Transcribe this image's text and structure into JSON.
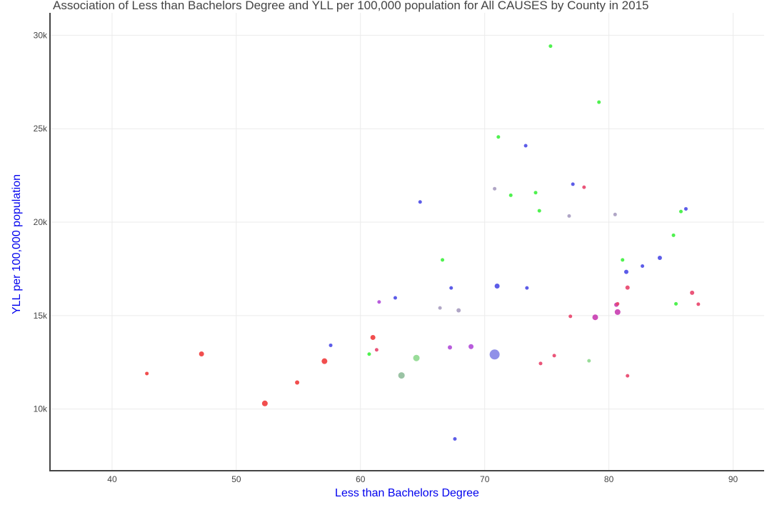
{
  "chart_data": {
    "type": "scatter",
    "title": "Association of Less than Bachelors Degree and YLL per 100,000 population for All CAUSES by County in 2015",
    "xlabel": "Less than Bachelors Degree",
    "ylabel": "YLL per 100,000 population",
    "xlim": [
      35,
      92.5
    ],
    "ylim": [
      6700,
      31200
    ],
    "xticks": [
      40,
      50,
      60,
      70,
      80,
      90
    ],
    "xtick_labels": [
      "40",
      "50",
      "60",
      "70",
      "80",
      "90"
    ],
    "yticks": [
      10000,
      15000,
      20000,
      25000,
      30000
    ],
    "ytick_labels": [
      "10k",
      "15k",
      "20k",
      "25k",
      "30k"
    ],
    "grid": true,
    "axis_title_color": "#0000ee",
    "points": [
      {
        "x": 42.8,
        "y": 11900,
        "color": "#ef3b3b",
        "size": 2.5
      },
      {
        "x": 47.2,
        "y": 12950,
        "color": "#ef3b3b",
        "size": 3.5
      },
      {
        "x": 52.3,
        "y": 10300,
        "color": "#ef3b3b",
        "size": 4
      },
      {
        "x": 54.9,
        "y": 11420,
        "color": "#ef3b3b",
        "size": 3
      },
      {
        "x": 57.1,
        "y": 12560,
        "color": "#ef3b3b",
        "size": 4
      },
      {
        "x": 61.0,
        "y": 13830,
        "color": "#ef3b3b",
        "size": 3.5
      },
      {
        "x": 61.3,
        "y": 13170,
        "color": "#e8436a",
        "size": 2.5
      },
      {
        "x": 57.6,
        "y": 13410,
        "color": "#4a4ae6",
        "size": 2.5
      },
      {
        "x": 60.7,
        "y": 12940,
        "color": "#3cf03c",
        "size": 2.5
      },
      {
        "x": 61.5,
        "y": 15730,
        "color": "#b04ad8",
        "size": 2.5
      },
      {
        "x": 62.8,
        "y": 15950,
        "color": "#4a4ae6",
        "size": 2.5
      },
      {
        "x": 63.3,
        "y": 11800,
        "color": "#8fbc9a",
        "size": 4.5
      },
      {
        "x": 64.5,
        "y": 12730,
        "color": "#8ed88e",
        "size": 4.5
      },
      {
        "x": 64.8,
        "y": 21080,
        "color": "#4a4ae6",
        "size": 2.5
      },
      {
        "x": 66.4,
        "y": 15410,
        "color": "#a79cc0",
        "size": 2.5
      },
      {
        "x": 66.6,
        "y": 17980,
        "color": "#3cf03c",
        "size": 2.5
      },
      {
        "x": 67.2,
        "y": 13300,
        "color": "#b04ad8",
        "size": 3
      },
      {
        "x": 67.3,
        "y": 16480,
        "color": "#4a4ae6",
        "size": 2.5
      },
      {
        "x": 67.6,
        "y": 8400,
        "color": "#4a4ae6",
        "size": 2.5
      },
      {
        "x": 67.9,
        "y": 15280,
        "color": "#a79cc0",
        "size": 3
      },
      {
        "x": 68.9,
        "y": 13340,
        "color": "#b04ad8",
        "size": 3.5
      },
      {
        "x": 70.8,
        "y": 12920,
        "color": "#8484e6",
        "size": 7
      },
      {
        "x": 70.8,
        "y": 21790,
        "color": "#a79cc0",
        "size": 2.5
      },
      {
        "x": 71.0,
        "y": 16580,
        "color": "#4a4ae6",
        "size": 3.5
      },
      {
        "x": 71.1,
        "y": 24560,
        "color": "#3cf03c",
        "size": 2.5
      },
      {
        "x": 72.1,
        "y": 21440,
        "color": "#3cf03c",
        "size": 2.5
      },
      {
        "x": 73.3,
        "y": 24090,
        "color": "#4a4ae6",
        "size": 2.5
      },
      {
        "x": 73.4,
        "y": 16480,
        "color": "#4a4ae6",
        "size": 2.5
      },
      {
        "x": 74.1,
        "y": 21580,
        "color": "#3cf03c",
        "size": 2.5
      },
      {
        "x": 74.4,
        "y": 20610,
        "color": "#3cf03c",
        "size": 2.5
      },
      {
        "x": 74.5,
        "y": 12440,
        "color": "#e8436a",
        "size": 2.5
      },
      {
        "x": 75.3,
        "y": 29420,
        "color": "#3cf03c",
        "size": 2.5
      },
      {
        "x": 75.6,
        "y": 12860,
        "color": "#e8436a",
        "size": 2.5
      },
      {
        "x": 76.8,
        "y": 20330,
        "color": "#a79cc0",
        "size": 2.5
      },
      {
        "x": 76.9,
        "y": 14960,
        "color": "#e8436a",
        "size": 2.5
      },
      {
        "x": 77.1,
        "y": 22030,
        "color": "#4a4ae6",
        "size": 2.5
      },
      {
        "x": 78.0,
        "y": 21870,
        "color": "#e8436a",
        "size": 2.5
      },
      {
        "x": 78.4,
        "y": 12580,
        "color": "#8ed88e",
        "size": 2.5
      },
      {
        "x": 78.9,
        "y": 14910,
        "color": "#c83cb0",
        "size": 4
      },
      {
        "x": 79.2,
        "y": 26420,
        "color": "#3cf03c",
        "size": 2.5
      },
      {
        "x": 80.5,
        "y": 20410,
        "color": "#a79cc0",
        "size": 2.5
      },
      {
        "x": 80.6,
        "y": 15580,
        "color": "#c83cb0",
        "size": 3
      },
      {
        "x": 80.7,
        "y": 15630,
        "color": "#e8436a",
        "size": 2.5
      },
      {
        "x": 80.7,
        "y": 15190,
        "color": "#c83cb0",
        "size": 4
      },
      {
        "x": 81.1,
        "y": 17980,
        "color": "#3cf03c",
        "size": 2.5
      },
      {
        "x": 81.4,
        "y": 17340,
        "color": "#4a4ae6",
        "size": 3
      },
      {
        "x": 81.5,
        "y": 16500,
        "color": "#e8436a",
        "size": 3
      },
      {
        "x": 81.5,
        "y": 11780,
        "color": "#e8436a",
        "size": 2.5
      },
      {
        "x": 82.7,
        "y": 17650,
        "color": "#4a4ae6",
        "size": 2.5
      },
      {
        "x": 84.1,
        "y": 18090,
        "color": "#4a4ae6",
        "size": 3
      },
      {
        "x": 85.2,
        "y": 19300,
        "color": "#3cf03c",
        "size": 2.5
      },
      {
        "x": 85.4,
        "y": 15630,
        "color": "#3cf03c",
        "size": 2.5
      },
      {
        "x": 85.8,
        "y": 20570,
        "color": "#3cf03c",
        "size": 2.5
      },
      {
        "x": 86.2,
        "y": 20710,
        "color": "#4a4ae6",
        "size": 2.5
      },
      {
        "x": 86.7,
        "y": 16220,
        "color": "#e8436a",
        "size": 3
      },
      {
        "x": 87.2,
        "y": 15610,
        "color": "#e8436a",
        "size": 2.5
      }
    ]
  }
}
